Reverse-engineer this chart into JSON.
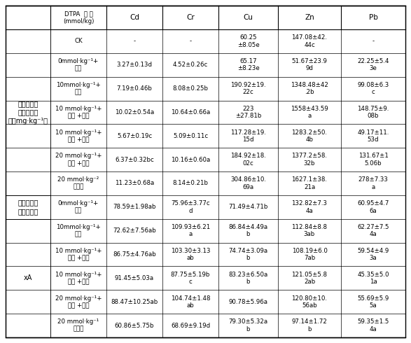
{
  "col_headers": [
    "DTPA  浓 度\n(mmol/kg)",
    "Cd",
    "Cr",
    "Cu",
    "Zn",
    "Pb"
  ],
  "row_groups": [
    {
      "group_label": "黑麦草地上\n部重金属浓\n度（mg·kg⁻¹）",
      "rows": [
        {
          "label": "CK",
          "values": [
            "-",
            "-",
            "60.25\n±8.05e",
            "147.08±42.\n44c",
            "-"
          ]
        },
        {
          "label": "0mmol·kg⁻¹+\n植物",
          "values": [
            "3.27±0.13d",
            "4.52±0.26c",
            "65.17\n±8.23e",
            "51.67±23.9\n9d",
            "22.25±5.4\n3e"
          ]
        },
        {
          "label": "10mmol·kg⁻¹+\n植物",
          "values": [
            "7.19±0.46b",
            "8.08±0.25b",
            "190.92±19.\n22c",
            "1348.48±42\n.2b",
            "99.08±6.3\nc"
          ]
        },
        {
          "label": "10 mmol·kg⁻¹+\n隔层 +植物",
          "values": [
            "10.02±0.54a",
            "10.64±0.66a",
            "223\n±27.81b",
            "1558±43.59\na",
            "148.75±9.\n08b"
          ]
        },
        {
          "label": "10 mmol·kg⁻¹+\n隔层 +植物",
          "values": [
            "5.67±0.19c",
            "5.09±0.11c",
            "117.28±19.\n15d",
            "1283.2±50.\n4b",
            "49.17±11.\n53d"
          ]
        },
        {
          "label": "20 mmol·kg⁻¹+\n隔层 +植物",
          "values": [
            "6.37±0.32bc",
            "10.16±0.60a",
            "184.92±18.\n02c",
            "1377.2±58.\n32b",
            "131.67±1\n5.06b"
          ]
        },
        {
          "label": "20 mmol·kg⁻²\n无植物",
          "values": [
            "11.23±0.68a",
            "8.14±0.21b",
            "304.86±10.\n69a",
            "1627.1±38.\n21a",
            "278±7.33\na"
          ]
        }
      ]
    },
    {
      "group_label": "地上部重金\n属富集系数",
      "rows": [
        {
          "label": "0mmol·kg⁻¹+\n植物",
          "values": [
            "78.59±1.98ab",
            "75.96±3.77c\nd",
            "71.49±4.71b",
            "132.82±7.3\n4a",
            "60.95±4.7\n6a"
          ]
        }
      ]
    },
    {
      "group_label": "xA",
      "rows": [
        {
          "label": "10mmol·kg⁻¹+\n植物",
          "values": [
            "72.62±7.56ab",
            "109.93±6.21\na",
            "86.84±4.49a\nb",
            "112.84±8.8\n3ab",
            "62.27±7.5\n4a"
          ]
        },
        {
          "label": "10 mmol·kg⁻¹+\n隔层 +植物",
          "values": [
            "86.75±4.76ab",
            "103.30±3.13\nab",
            "74.74±3.09a\nb",
            "108.19±6.0\n7ab",
            "59.54±4.9\n3a"
          ]
        },
        {
          "label": "10 mmol·kg⁻¹+\n隔层 +植物",
          "values": [
            "91.45±5.03a",
            "87.75±5.19b\nc",
            "83.23±6.50a\nb",
            "121.05±5.8\n2ab",
            "45.35±5.0\n1a"
          ]
        },
        {
          "label": "20 mmol·kg⁻¹+\n隔层 +植物",
          "values": [
            "88.47±10.25ab",
            "104.74±1.48\nab",
            "90.78±5.96a",
            "120.80±10.\n56ab",
            "55.69±5.9\n5a"
          ]
        },
        {
          "label": "20 mmol·kg⁻¹\n无植物",
          "values": [
            "60.86±5.75b",
            "68.69±9.19d",
            "79.30±5.32a\nb",
            "97.14±1.72\nb",
            "59.35±1.5\n4a"
          ]
        }
      ]
    }
  ],
  "bg_color": "#ffffff",
  "text_color": "#000000",
  "font_size": 6.2,
  "header_font_size": 7.5,
  "group_font_size": 7.0
}
